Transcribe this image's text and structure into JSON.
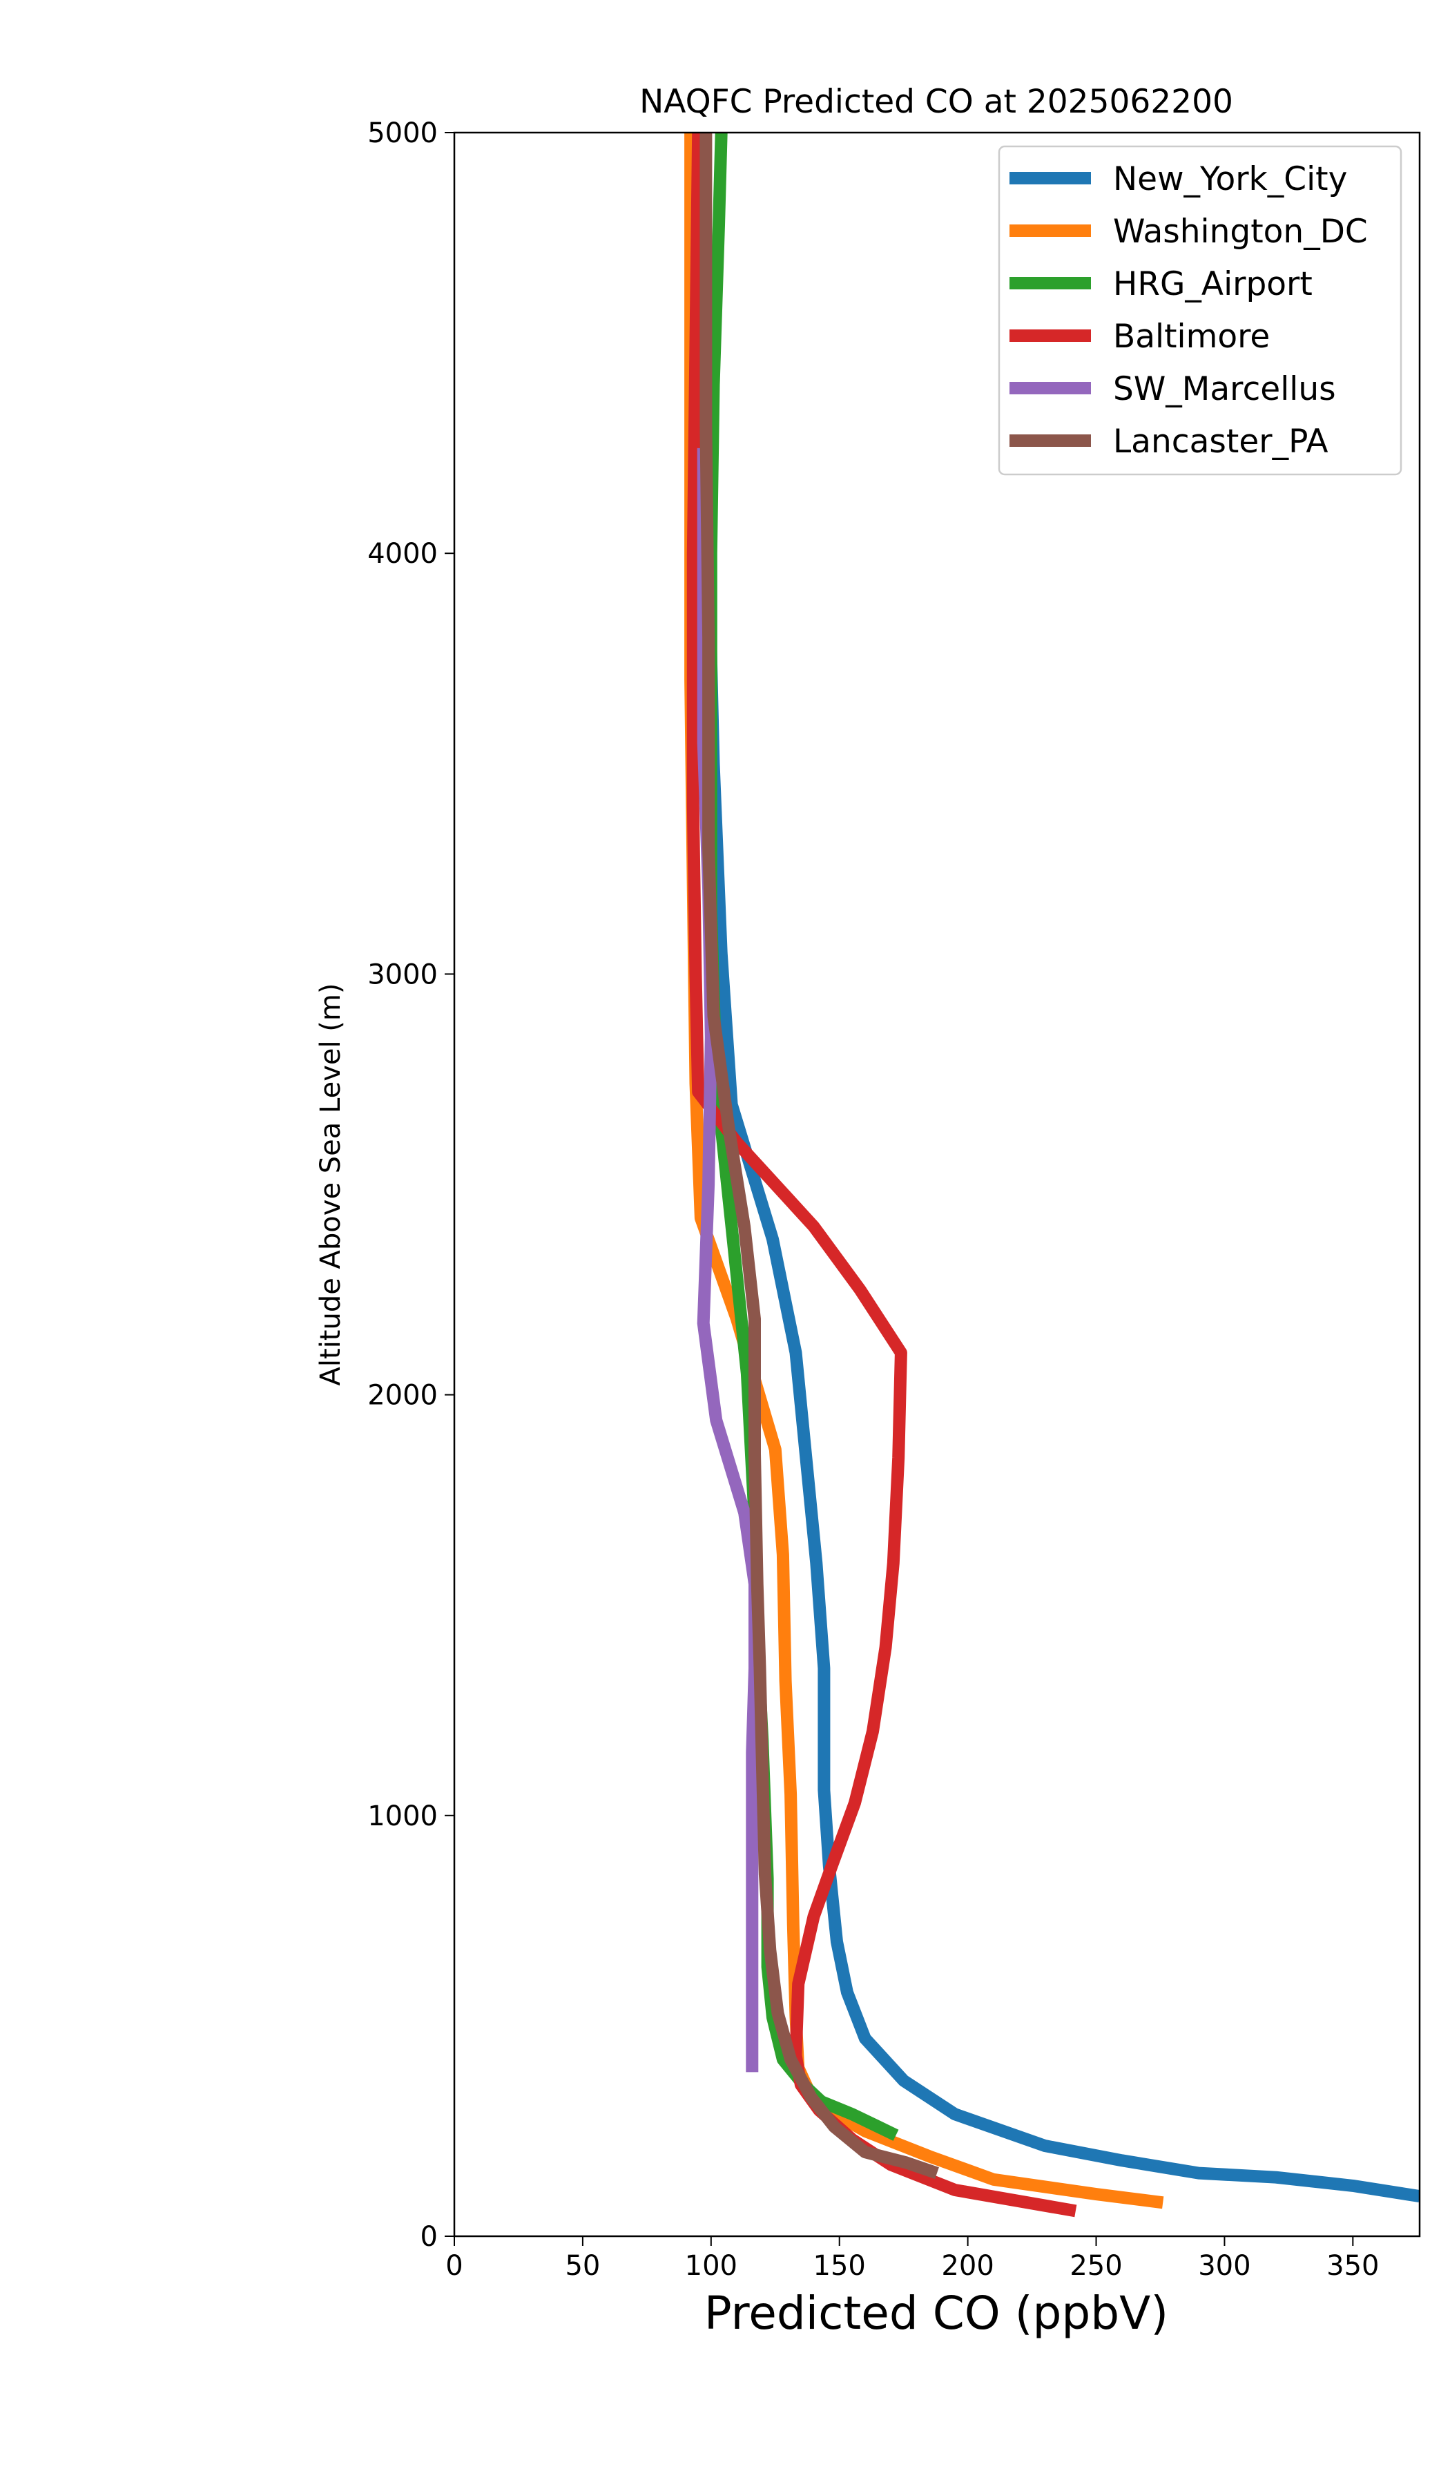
{
  "chart_data": {
    "type": "line",
    "title": "NAQFC Predicted CO at 2025062200",
    "xlabel": "Predicted CO (ppbV)",
    "ylabel": "Altitude Above Sea Level (m)",
    "xlim": [
      0,
      376
    ],
    "ylim": [
      0,
      5000
    ],
    "xticks": [
      "0",
      "50",
      "100",
      "150",
      "200",
      "250",
      "300",
      "350"
    ],
    "yticks": [
      "0",
      "1000",
      "2000",
      "3000",
      "4000",
      "5000"
    ],
    "grid": false,
    "legend_position": "top-right",
    "series": [
      {
        "name": "New_York_City",
        "color": "#1f77b4",
        "points": [
          [
            376,
            95
          ],
          [
            350,
            120
          ],
          [
            320,
            140
          ],
          [
            290,
            150
          ],
          [
            260,
            180
          ],
          [
            230,
            215
          ],
          [
            195,
            290
          ],
          [
            175,
            370
          ],
          [
            160,
            470
          ],
          [
            153,
            580
          ],
          [
            149,
            700
          ],
          [
            146,
            880
          ],
          [
            144,
            1060
          ],
          [
            144,
            1350
          ],
          [
            141,
            1600
          ],
          [
            137,
            1850
          ],
          [
            133,
            2100
          ],
          [
            124,
            2370
          ],
          [
            108,
            2690
          ],
          [
            104,
            3050
          ],
          [
            101,
            3500
          ],
          [
            99,
            4000
          ],
          [
            97,
            4500
          ],
          [
            95,
            5000
          ]
        ]
      },
      {
        "name": "Washington_DC",
        "color": "#ff7f0e",
        "points": [
          [
            276,
            80
          ],
          [
            250,
            100
          ],
          [
            210,
            135
          ],
          [
            185,
            190
          ],
          [
            160,
            250
          ],
          [
            140,
            320
          ],
          [
            134,
            400
          ],
          [
            133,
            520
          ],
          [
            132,
            740
          ],
          [
            131,
            1050
          ],
          [
            129,
            1320
          ],
          [
            128,
            1620
          ],
          [
            125,
            1870
          ],
          [
            110,
            2180
          ],
          [
            96,
            2420
          ],
          [
            94,
            2740
          ],
          [
            93,
            3200
          ],
          [
            92,
            3700
          ],
          [
            92,
            4300
          ],
          [
            92,
            5000
          ]
        ]
      },
      {
        "name": "HRG_Airport",
        "color": "#2ca02c",
        "points": [
          [
            172,
            240
          ],
          [
            155,
            290
          ],
          [
            143,
            320
          ],
          [
            136,
            360
          ],
          [
            128,
            420
          ],
          [
            124,
            520
          ],
          [
            122,
            640
          ],
          [
            122,
            850
          ],
          [
            120,
            1180
          ],
          [
            118,
            1420
          ],
          [
            117,
            1700
          ],
          [
            114,
            2050
          ],
          [
            108,
            2400
          ],
          [
            102,
            2750
          ],
          [
            100,
            3150
          ],
          [
            100,
            3550
          ],
          [
            100,
            4000
          ],
          [
            101,
            4400
          ],
          [
            103,
            4780
          ],
          [
            104,
            5000
          ]
        ]
      },
      {
        "name": "Baltimore",
        "color": "#d62728",
        "points": [
          [
            242,
            60
          ],
          [
            195,
            110
          ],
          [
            170,
            170
          ],
          [
            155,
            230
          ],
          [
            142,
            300
          ],
          [
            135,
            360
          ],
          [
            133,
            430
          ],
          [
            134,
            600
          ],
          [
            140,
            760
          ],
          [
            147,
            880
          ],
          [
            156,
            1030
          ],
          [
            163,
            1200
          ],
          [
            168,
            1400
          ],
          [
            171,
            1600
          ],
          [
            173,
            1850
          ],
          [
            174,
            2100
          ],
          [
            158,
            2250
          ],
          [
            140,
            2400
          ],
          [
            110,
            2600
          ],
          [
            95,
            2720
          ],
          [
            94,
            3000
          ],
          [
            93,
            3400
          ],
          [
            93,
            4000
          ],
          [
            94,
            4500
          ],
          [
            95,
            5000
          ]
        ]
      },
      {
        "name": "SW_Marcellus",
        "color": "#9467bd",
        "points": [
          [
            116,
            390
          ],
          [
            116,
            560
          ],
          [
            116,
            760
          ],
          [
            116,
            960
          ],
          [
            116,
            1150
          ],
          [
            117,
            1350
          ],
          [
            117,
            1550
          ],
          [
            113,
            1720
          ],
          [
            102,
            1940
          ],
          [
            97,
            2170
          ],
          [
            99,
            2500
          ],
          [
            100,
            2850
          ],
          [
            99,
            3200
          ],
          [
            97,
            3550
          ],
          [
            97,
            3900
          ],
          [
            97,
            4250
          ]
        ]
      },
      {
        "name": "Lancaster_PA",
        "color": "#8c564b",
        "points": [
          [
            188,
            150
          ],
          [
            176,
            175
          ],
          [
            160,
            200
          ],
          [
            148,
            260
          ],
          [
            139,
            330
          ],
          [
            131,
            420
          ],
          [
            126,
            530
          ],
          [
            123,
            680
          ],
          [
            121,
            860
          ],
          [
            120,
            1100
          ],
          [
            119,
            1350
          ],
          [
            118,
            1550
          ],
          [
            117,
            1860
          ],
          [
            117,
            2180
          ],
          [
            113,
            2400
          ],
          [
            107,
            2630
          ],
          [
            101,
            2900
          ],
          [
            99,
            3300
          ],
          [
            99,
            3800
          ],
          [
            98,
            4300
          ],
          [
            98,
            4700
          ],
          [
            98,
            5000
          ]
        ]
      }
    ]
  }
}
